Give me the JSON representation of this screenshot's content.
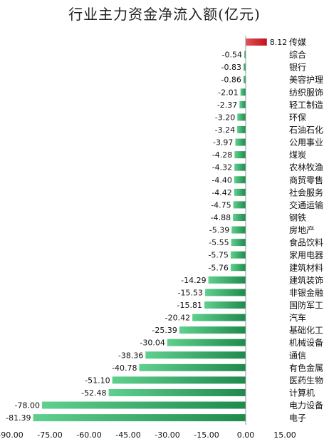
{
  "chart_data": {
    "type": "bar",
    "orientation": "horizontal",
    "title": "行业主力资金净流入额(亿元)",
    "categories": [
      "传媒",
      "综合",
      "银行",
      "美容护理",
      "纺织服饰",
      "轻工制造",
      "环保",
      "石油石化",
      "公用事业",
      "煤炭",
      "农林牧渔",
      "商贸零售",
      "社会服务",
      "交通运输",
      "钢铁",
      "房地产",
      "食品饮料",
      "家用电器",
      "建筑材料",
      "建筑装饰",
      "非银金融",
      "国防军工",
      "汽车",
      "基础化工",
      "机械设备",
      "通信",
      "有色金属",
      "医药生物",
      "计算机",
      "电力设备",
      "电子"
    ],
    "values": [
      8.12,
      -0.54,
      -0.83,
      -0.86,
      -2.01,
      -2.37,
      -3.2,
      -3.24,
      -3.97,
      -4.28,
      -4.32,
      -4.4,
      -4.42,
      -4.75,
      -4.88,
      -5.39,
      -5.55,
      -5.75,
      -5.76,
      -14.29,
      -15.53,
      -15.81,
      -20.42,
      -25.39,
      -30.04,
      -38.36,
      -40.78,
      -51.1,
      -52.48,
      -78.0,
      -81.39
    ],
    "value_labels": [
      "8.12",
      "-0.54",
      "-0.83",
      "-0.86",
      "-2.01",
      "-2.37",
      "-3.20",
      "-3.24",
      "-3.97",
      "-4.28",
      "-4.32",
      "-4.40",
      "-4.42",
      "-4.75",
      "-4.88",
      "-5.39",
      "-5.55",
      "-5.75",
      "-5.76",
      "-14.29",
      "-15.53",
      "-15.81",
      "-20.42",
      "-25.39",
      "-30.04",
      "-38.36",
      "-40.78",
      "-51.10",
      "-52.48",
      "-78.00",
      "-81.39"
    ],
    "x_ticks": [
      "-90.00",
      "-75.00",
      "-60.00",
      "-45.00",
      "-30.00",
      "-15.00",
      "0.00",
      "15.00"
    ],
    "xlim": [
      -90,
      15
    ],
    "grid": false,
    "legend": "none",
    "colors": {
      "positive": "#c0121b",
      "positive_light": "#e0525a",
      "negative": "#1f8a4c",
      "negative_light": "#5fd08e"
    }
  }
}
